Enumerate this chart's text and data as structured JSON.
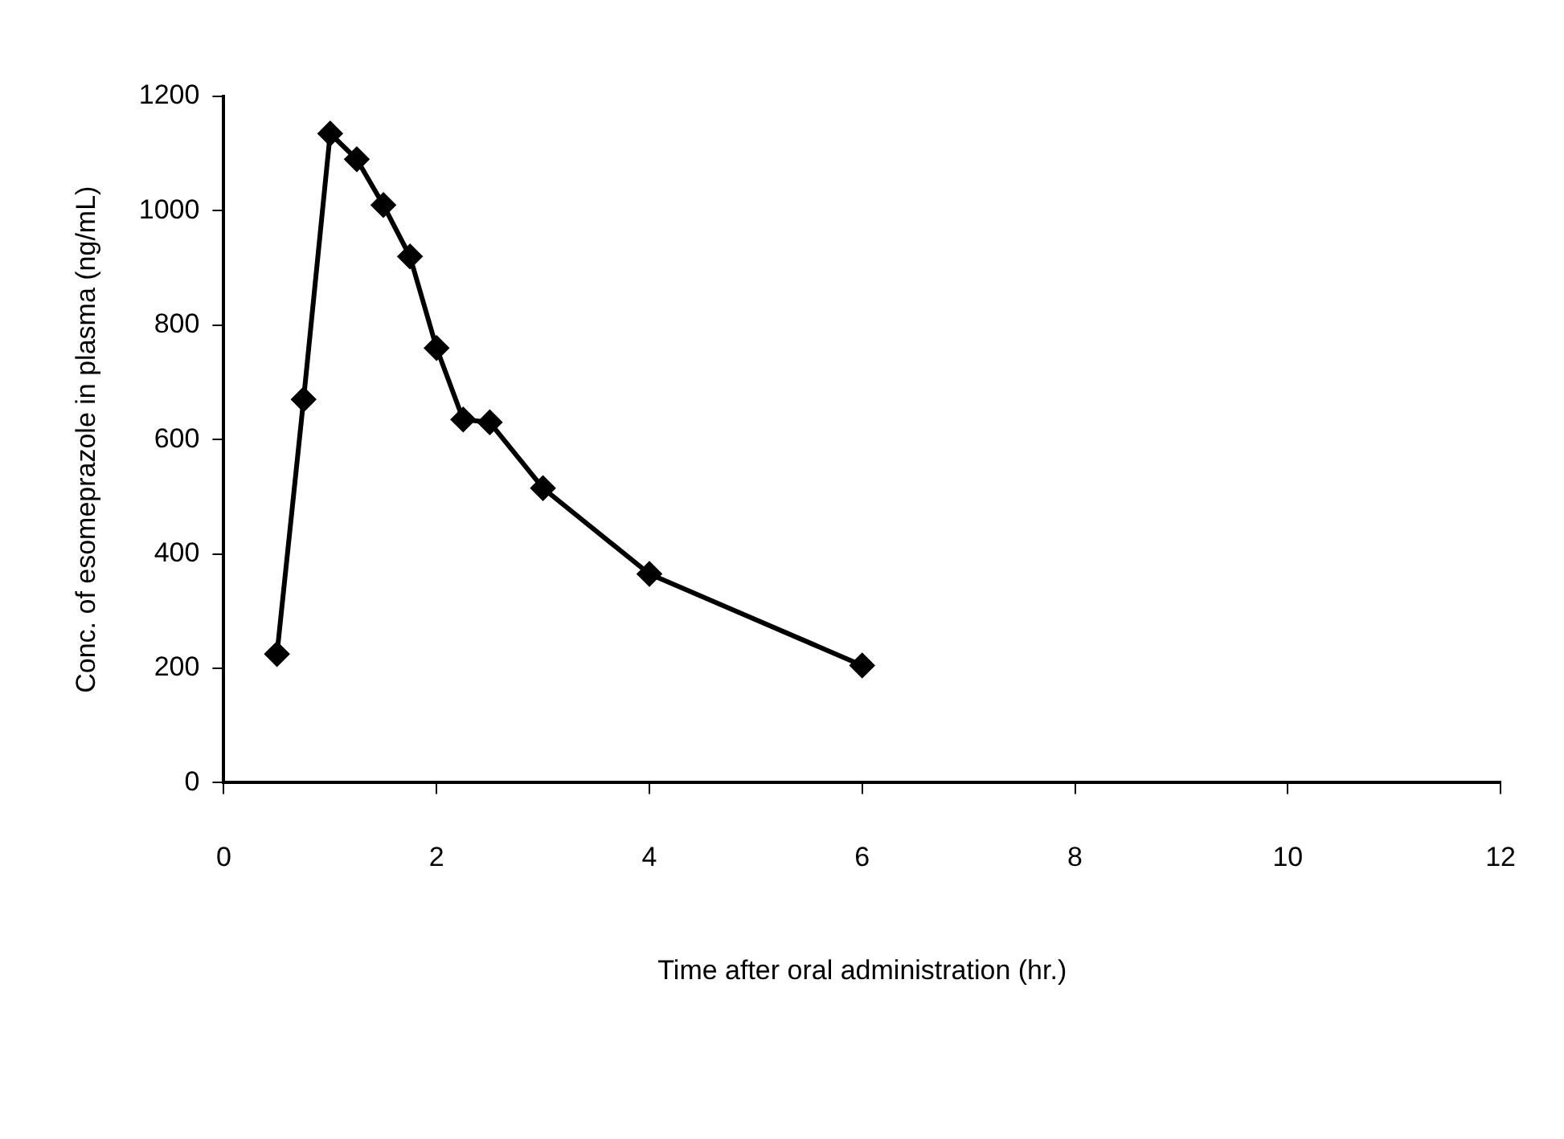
{
  "chart_data": {
    "type": "line",
    "xlabel": "Time after oral administration (hr.)",
    "ylabel": "Conc. of esomeprazole in plasma (ng/mL)",
    "x": [
      0.5,
      0.75,
      1,
      1.25,
      1.5,
      1.75,
      2,
      2.25,
      2.5,
      3,
      4,
      6
    ],
    "series": [
      {
        "color": "#000000",
        "values": [
          225,
          670,
          1135,
          1090,
          1010,
          920,
          760,
          635,
          630,
          515,
          365,
          205
        ]
      }
    ],
    "xlim": [
      0,
      12
    ],
    "xticks": [
      0,
      2,
      4,
      6,
      8,
      10,
      12
    ],
    "ylim": [
      0,
      1200
    ],
    "yticks": [
      0,
      200,
      400,
      600,
      800,
      1000,
      1200
    ],
    "grid": false,
    "legend": false,
    "marker": "diamond",
    "line_style": "solid"
  }
}
